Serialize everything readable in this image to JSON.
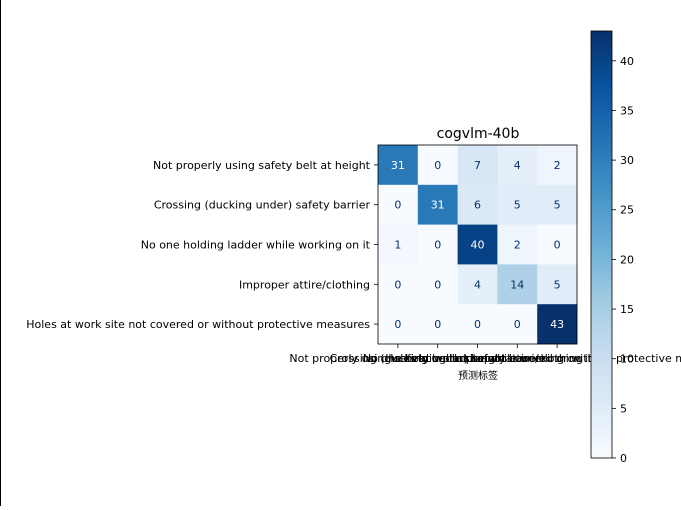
{
  "chart_data": {
    "type": "heatmap",
    "title": "cogvlm-40b",
    "xlabel": "预测标签",
    "ylabel": "",
    "row_labels": [
      "Not properly using safety belt at height",
      "Crossing (ducking under) safety barrier",
      "No one holding ladder while working on it",
      "Improper attire/clothing",
      "Holes at work site not covered or without protective measures"
    ],
    "col_labels": [
      "Not properly using safety belt at height",
      "Crossing (ducking under) safety barrier",
      "No one holding ladder while working on it",
      "Improper attire/clothing",
      "Holes at work site not covered or without protective measures"
    ],
    "matrix": [
      [
        31,
        0,
        7,
        4,
        2
      ],
      [
        0,
        31,
        6,
        5,
        5
      ],
      [
        1,
        0,
        40,
        2,
        0
      ],
      [
        0,
        0,
        4,
        14,
        5
      ],
      [
        0,
        0,
        0,
        0,
        43
      ]
    ],
    "colormap": "Blues",
    "vmin": 0,
    "vmax": 43,
    "colorbar_ticks": [
      0,
      5,
      10,
      15,
      20,
      25,
      30,
      35,
      40
    ]
  }
}
